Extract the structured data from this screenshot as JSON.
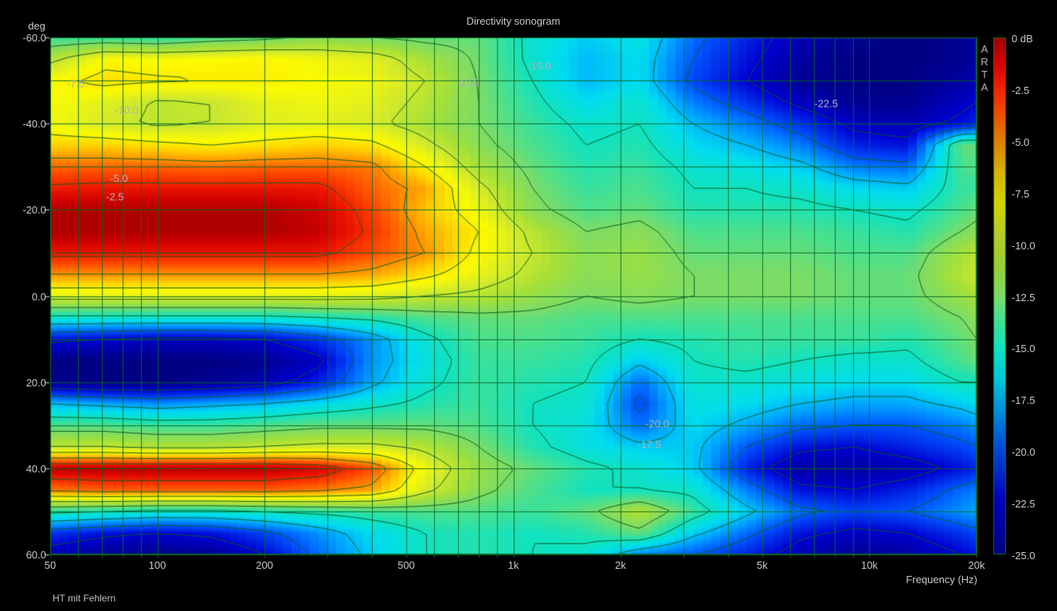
{
  "title": "Directivity sonogram",
  "footer_note": "HT mit Fehlern",
  "watermark": "ARTA",
  "axes": {
    "y_label": "deg",
    "x_label": "Frequency (Hz)",
    "y_ticks": [
      {
        "deg": -60,
        "label": "-60.0"
      },
      {
        "deg": -40,
        "label": "-40.0"
      },
      {
        "deg": -20,
        "label": "-20.0"
      },
      {
        "deg": 0,
        "label": "0.0"
      },
      {
        "deg": 20,
        "label": "20.0"
      },
      {
        "deg": 40,
        "label": "40.0"
      },
      {
        "deg": 60,
        "label": "60.0"
      }
    ],
    "x_ticks": [
      {
        "hz": 50,
        "label": "50"
      },
      {
        "hz": 100,
        "label": "100"
      },
      {
        "hz": 200,
        "label": "200"
      },
      {
        "hz": 500,
        "label": "500"
      },
      {
        "hz": 1000,
        "label": "1k"
      },
      {
        "hz": 2000,
        "label": "2k"
      },
      {
        "hz": 5000,
        "label": "5k"
      },
      {
        "hz": 10000,
        "label": "10k"
      },
      {
        "hz": 20000,
        "label": "20k"
      }
    ]
  },
  "colorbar": {
    "unit": "dB",
    "ticks": [
      {
        "db": 0,
        "label": "0 dB"
      },
      {
        "db": -2.5,
        "label": "-2.5"
      },
      {
        "db": -5,
        "label": "-5.0"
      },
      {
        "db": -7.5,
        "label": "-7.5"
      },
      {
        "db": -10,
        "label": "-10.0"
      },
      {
        "db": -12.5,
        "label": "-12.5"
      },
      {
        "db": -15,
        "label": "-15.0"
      },
      {
        "db": -17.5,
        "label": "-17.5"
      },
      {
        "db": -20,
        "label": "-20.0"
      },
      {
        "db": -22.5,
        "label": "-22.5"
      },
      {
        "db": -25,
        "label": "-25.0"
      }
    ]
  },
  "colors": {
    "background": "#000000",
    "text": "#c8c8c8",
    "grid": "#086828",
    "contour": "#0a5a20",
    "border": "#0e6e28",
    "contour_label": "#b2b2b2"
  },
  "chart_data": {
    "type": "heatmap",
    "title": "Directivity sonogram",
    "xlabel": "Frequency (Hz)",
    "ylabel": "deg",
    "x_scale": "log",
    "x_range_hz": [
      50,
      20000
    ],
    "y_range_deg": [
      -60,
      60
    ],
    "z_range_db": [
      -25,
      0
    ],
    "legend_position": "right-colorbar",
    "grid_freqs_hz": [
      60,
      70,
      80,
      90,
      100,
      200,
      300,
      400,
      500,
      600,
      700,
      800,
      900,
      1000,
      2000,
      3000,
      4000,
      5000,
      6000,
      7000,
      8000,
      9000,
      10000,
      20000
    ],
    "grid_angle_step_deg": 10,
    "contour_levels_db": [
      -22.5,
      -20,
      -17.5,
      -15,
      -12.5,
      -10,
      -7.5,
      -5,
      -2.5
    ],
    "contour_labels": [
      {
        "label": "-7.5",
        "f_hz": 59,
        "deg": -49.3
      },
      {
        "label": "-10.0",
        "f_hz": 82,
        "deg": -43.1
      },
      {
        "label": "-5.0",
        "f_hz": 78,
        "deg": -27.2
      },
      {
        "label": "-2.5",
        "f_hz": 76,
        "deg": -23.1
      },
      {
        "label": "-12.5",
        "f_hz": 743,
        "deg": -49.4
      },
      {
        "label": "-15.0",
        "f_hz": 1182,
        "deg": -53.3
      },
      {
        "label": "-22.5",
        "f_hz": 7560,
        "deg": -44.6
      },
      {
        "label": "-20.0",
        "f_hz": 2536,
        "deg": 29.6
      },
      {
        "label": "-17.5",
        "f_hz": 2408,
        "deg": 34.4
      }
    ],
    "colormap_stops": [
      {
        "db": -25,
        "color": "#000082"
      },
      {
        "db": -22.5,
        "color": "#0000d2"
      },
      {
        "db": -20,
        "color": "#0055ff"
      },
      {
        "db": -18,
        "color": "#00a8ff"
      },
      {
        "db": -16.5,
        "color": "#00ddee"
      },
      {
        "db": -15,
        "color": "#10e2c0"
      },
      {
        "db": -13.5,
        "color": "#4ce08c"
      },
      {
        "db": -12.5,
        "color": "#7cdc66"
      },
      {
        "db": -11,
        "color": "#a6e038"
      },
      {
        "db": -9.5,
        "color": "#d6ea2a"
      },
      {
        "db": -8,
        "color": "#fbfb00"
      },
      {
        "db": -6.5,
        "color": "#ffd200"
      },
      {
        "db": -5,
        "color": "#ff9100"
      },
      {
        "db": -3.5,
        "color": "#ff4b00"
      },
      {
        "db": -2,
        "color": "#ec1400"
      },
      {
        "db": -1,
        "color": "#ce0000"
      },
      {
        "db": 0,
        "color": "#a20000"
      }
    ],
    "frequencies_hz": [
      50,
      71,
      100,
      141,
      200,
      283,
      400,
      566,
      800,
      1131,
      1600,
      2263,
      3200,
      4525,
      6400,
      9051,
      12800,
      18102,
      20000
    ],
    "angles_deg": [
      -60,
      -55,
      -50,
      -45,
      -40,
      -35,
      -30,
      -25,
      -20,
      -15,
      -10,
      -5,
      0,
      5,
      10,
      15,
      20,
      25,
      30,
      35,
      40,
      45,
      50,
      55,
      60
    ],
    "values_db": [
      [
        -14,
        -14,
        -14.3,
        -13.5,
        -13,
        -12,
        -12.5,
        -13,
        -13,
        -15.5,
        -17,
        -16,
        -19.5,
        -21.5,
        -23.5,
        -24.5,
        -25,
        -24.5,
        -24
      ],
      [
        -10.5,
        -8,
        -8.2,
        -8,
        -7.8,
        -8.5,
        -9,
        -11,
        -12.8,
        -15.5,
        -17.5,
        -16.5,
        -20,
        -22,
        -24,
        -25,
        -25,
        -24.5,
        -24
      ],
      [
        -8,
        -7,
        -7.3,
        -7.5,
        -7.5,
        -8,
        -8.5,
        -10,
        -12.6,
        -15,
        -17.5,
        -16.5,
        -20.5,
        -22.5,
        -24.5,
        -25,
        -25,
        -24,
        -23.5
      ],
      [
        -8,
        -9,
        -10.2,
        -10,
        -8.8,
        -8.5,
        -9,
        -10.5,
        -12.5,
        -14.5,
        -16.5,
        -15.5,
        -19,
        -21,
        -23,
        -24.5,
        -24.5,
        -23,
        -22.5
      ],
      [
        -8.5,
        -9.5,
        -10.3,
        -10,
        -9.2,
        -9,
        -9.5,
        -11,
        -12.5,
        -14,
        -15.5,
        -15,
        -17.5,
        -19,
        -21,
        -23,
        -23.5,
        -22,
        -21.5
      ],
      [
        -6.5,
        -6.5,
        -7,
        -7.5,
        -7,
        -6.5,
        -7,
        -9.5,
        -12,
        -13.5,
        -15,
        -14.5,
        -16.5,
        -17.5,
        -19,
        -21.5,
        -22,
        -13,
        -13
      ],
      [
        -4,
        -4,
        -4,
        -4.2,
        -4,
        -4,
        -4.5,
        -7.5,
        -11,
        -13,
        -14.5,
        -14,
        -15.5,
        -16,
        -17,
        -19,
        -19.5,
        -13.5,
        -13.5
      ],
      [
        -2.2,
        -2,
        -2,
        -2,
        -2,
        -2,
        -4,
        -5.5,
        -9.5,
        -12.5,
        -14,
        -13.5,
        -15,
        -15,
        -15.5,
        -16.5,
        -17,
        -14,
        -14
      ],
      [
        -0.3,
        -0.3,
        -0.3,
        -0.3,
        -0.3,
        -1,
        -3.2,
        -6.2,
        -8.5,
        -12,
        -13.5,
        -13,
        -14.5,
        -14.5,
        -14.5,
        -15,
        -15.5,
        -13.5,
        -13
      ],
      [
        -0.3,
        -0.3,
        -0.3,
        -0.3,
        -0.3,
        -0.8,
        -2.8,
        -5.5,
        -7.5,
        -10.5,
        -12.5,
        -12,
        -13.5,
        -13.5,
        -13.5,
        -14,
        -14.5,
        -12.5,
        -12
      ],
      [
        -2,
        -2,
        -2,
        -2,
        -2,
        -2,
        -3.5,
        -5,
        -8,
        -10,
        -12,
        -11.5,
        -13,
        -13,
        -13,
        -13.5,
        -13.5,
        -11,
        -10.5
      ],
      [
        -5,
        -5,
        -5,
        -5,
        -5,
        -5,
        -5.5,
        -7,
        -8.8,
        -10.5,
        -12,
        -11.5,
        -12.5,
        -12.5,
        -12.5,
        -13,
        -13,
        -10.5,
        -10
      ],
      [
        -9,
        -9,
        -9,
        -9,
        -9,
        -9,
        -9.2,
        -10,
        -10.5,
        -11.5,
        -12.5,
        -12,
        -12.5,
        -12.5,
        -12.5,
        -13,
        -13,
        -11.5,
        -11
      ],
      [
        -15.5,
        -15.5,
        -15.5,
        -15.5,
        -15.5,
        -15,
        -14.5,
        -13.5,
        -13,
        -13,
        -13.5,
        -13.5,
        -13.5,
        -13.5,
        -13.5,
        -13.5,
        -13.5,
        -12.5,
        -12
      ],
      [
        -22,
        -22.5,
        -23,
        -23,
        -22.5,
        -21,
        -18.5,
        -15.5,
        -13.5,
        -13.5,
        -14,
        -15,
        -14.5,
        -14,
        -14,
        -14,
        -14.5,
        -13,
        -12.5
      ],
      [
        -25,
        -25,
        -25,
        -25,
        -24.5,
        -23,
        -18.5,
        -16,
        -14,
        -14,
        -14.5,
        -17,
        -15,
        -14.5,
        -15,
        -15.5,
        -15.5,
        -13.5,
        -13
      ],
      [
        -24.5,
        -25,
        -25,
        -24.5,
        -23.5,
        -21.5,
        -18,
        -15.5,
        -14,
        -14.5,
        -15,
        -19.5,
        -15.5,
        -15.5,
        -16,
        -16.5,
        -16.5,
        -15,
        -15
      ],
      [
        -17.5,
        -18,
        -18.5,
        -18,
        -17.5,
        -16.5,
        -15.5,
        -14.5,
        -14,
        -15,
        -15.5,
        -20.5,
        -16,
        -16.5,
        -17.5,
        -18,
        -18,
        -17,
        -16.5
      ],
      [
        -13.5,
        -13.5,
        -14,
        -14,
        -13.5,
        -13,
        -13,
        -13,
        -13.5,
        -15,
        -16,
        -19.5,
        -16.5,
        -18,
        -19.5,
        -20,
        -20,
        -19,
        -18.5
      ],
      [
        -10,
        -10,
        -10.5,
        -10.5,
        -10,
        -9.5,
        -9.5,
        -10.5,
        -12.5,
        -14.5,
        -16,
        -17,
        -17,
        -20,
        -22,
        -22.5,
        -21.5,
        -20.5,
        -20
      ],
      [
        -0.5,
        -0.5,
        -0.5,
        -0.5,
        -0.5,
        -1.2,
        -3.5,
        -8.5,
        -11.5,
        -13,
        -14.5,
        -15.5,
        -17,
        -21.5,
        -24,
        -24,
        -23.5,
        -22,
        -21.5
      ],
      [
        -4.5,
        -4,
        -4,
        -4,
        -4,
        -4.5,
        -5.5,
        -9.5,
        -12,
        -13.5,
        -15,
        -15,
        -15.5,
        -19,
        -22,
        -22.5,
        -21.5,
        -19.5,
        -19
      ],
      [
        -14.5,
        -15,
        -15.5,
        -15.5,
        -15,
        -14.5,
        -14,
        -13.5,
        -13.5,
        -14,
        -13,
        -10.5,
        -14,
        -17,
        -19.5,
        -20.5,
        -20,
        -18.5,
        -18
      ],
      [
        -21,
        -22,
        -22.5,
        -22,
        -20.5,
        -18.5,
        -16.5,
        -15,
        -14.5,
        -15,
        -14.5,
        -13,
        -17,
        -19.5,
        -22,
        -23,
        -22.5,
        -21,
        -20.5
      ],
      [
        -23.5,
        -24.5,
        -25,
        -24.5,
        -22.5,
        -19.5,
        -17,
        -15,
        -14.5,
        -15,
        -15.5,
        -19,
        -20,
        -21.5,
        -23.5,
        -24.5,
        -24,
        -22.5,
        -22
      ]
    ]
  }
}
